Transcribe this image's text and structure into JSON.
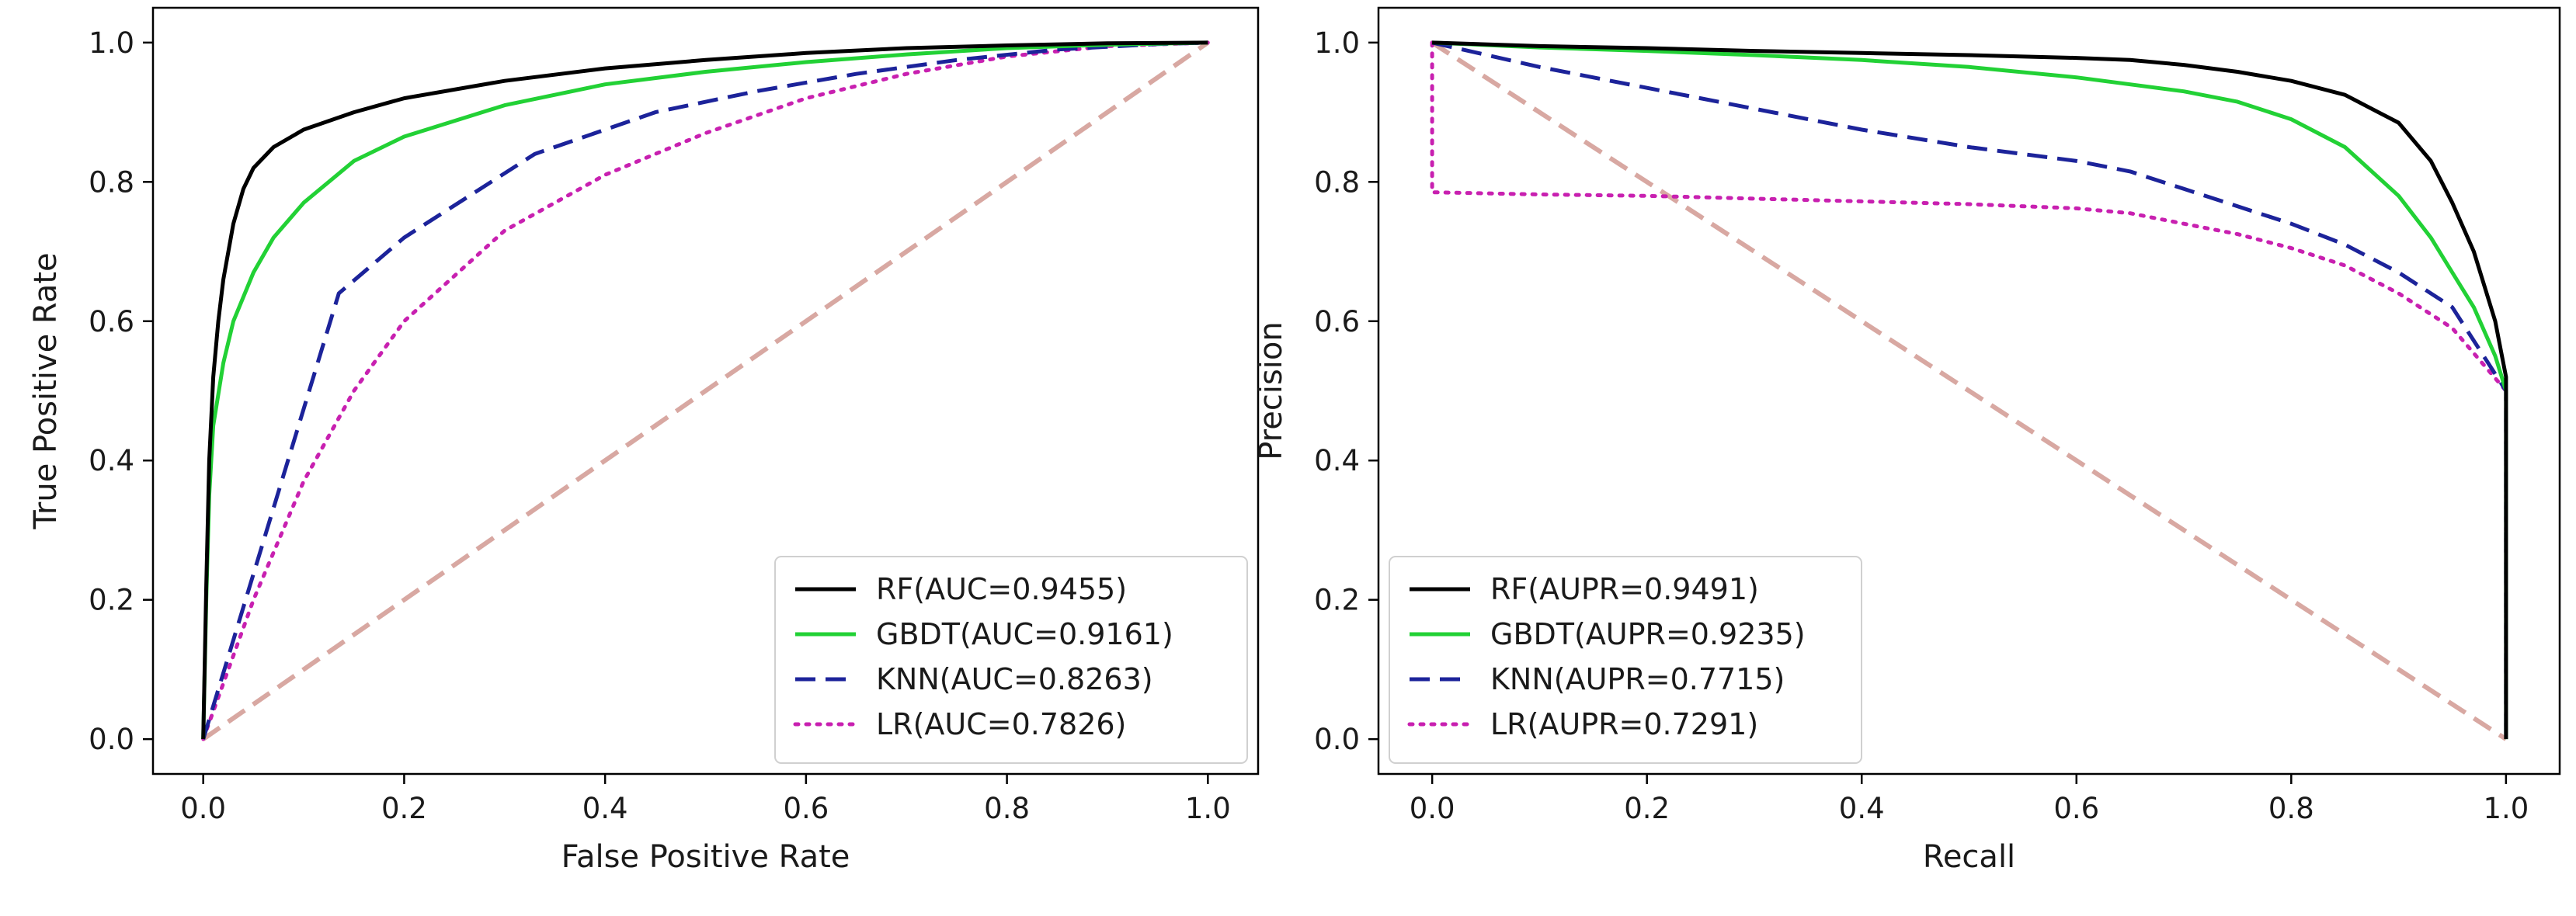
{
  "chart_data": [
    {
      "type": "line",
      "xlabel": "False Positive Rate",
      "ylabel": "True Positive Rate",
      "xlim": [
        -0.05,
        1.05
      ],
      "ylim": [
        -0.05,
        1.05
      ],
      "xticks": [
        0.0,
        0.2,
        0.4,
        0.6,
        0.8,
        1.0
      ],
      "yticks": [
        0.0,
        0.2,
        0.4,
        0.6,
        0.8,
        1.0
      ],
      "xtick_labels": [
        "0.0",
        "0.2",
        "0.4",
        "0.6",
        "0.8",
        "1.0"
      ],
      "ytick_labels": [
        "0.0",
        "0.2",
        "0.4",
        "0.6",
        "0.8",
        "1.0"
      ],
      "legend_position": "lower-right",
      "series": [
        {
          "name": "RF(AUC=0.9455)",
          "color": "#000000",
          "dash": "solid",
          "x": [
            0,
            0.003,
            0.006,
            0.01,
            0.015,
            0.02,
            0.03,
            0.04,
            0.05,
            0.07,
            0.1,
            0.15,
            0.2,
            0.3,
            0.4,
            0.5,
            0.6,
            0.7,
            0.8,
            0.9,
            1.0
          ],
          "y": [
            0,
            0.22,
            0.4,
            0.52,
            0.6,
            0.66,
            0.74,
            0.79,
            0.82,
            0.85,
            0.875,
            0.9,
            0.92,
            0.945,
            0.963,
            0.975,
            0.985,
            0.992,
            0.996,
            0.999,
            1.0
          ]
        },
        {
          "name": "GBDT(AUC=0.9161)",
          "color": "#22d135",
          "dash": "solid",
          "x": [
            0,
            0.003,
            0.006,
            0.01,
            0.02,
            0.03,
            0.05,
            0.07,
            0.1,
            0.15,
            0.2,
            0.3,
            0.4,
            0.5,
            0.6,
            0.7,
            0.8,
            0.9,
            1.0
          ],
          "y": [
            0,
            0.2,
            0.35,
            0.45,
            0.54,
            0.6,
            0.67,
            0.72,
            0.77,
            0.83,
            0.865,
            0.91,
            0.94,
            0.958,
            0.972,
            0.983,
            0.992,
            0.997,
            1.0
          ]
        },
        {
          "name": "KNN(AUC=0.8263)",
          "color": "#1c239a",
          "dash": "dashed",
          "x": [
            0,
            0.135,
            0.2,
            0.33,
            0.45,
            0.55,
            0.65,
            0.75,
            0.85,
            0.95,
            1.0
          ],
          "y": [
            0,
            0.64,
            0.72,
            0.84,
            0.9,
            0.93,
            0.955,
            0.975,
            0.99,
            0.998,
            1.0
          ]
        },
        {
          "name": "LR(AUC=0.7826)",
          "color": "#c820b0",
          "dash": "dotted",
          "x": [
            0,
            0.05,
            0.1,
            0.15,
            0.2,
            0.3,
            0.4,
            0.5,
            0.6,
            0.7,
            0.8,
            0.9,
            1.0
          ],
          "y": [
            0,
            0.2,
            0.37,
            0.5,
            0.6,
            0.73,
            0.81,
            0.87,
            0.92,
            0.955,
            0.98,
            0.995,
            1.0
          ]
        },
        {
          "name": "",
          "color": "#d8a8a2",
          "dash": "dashed",
          "legend": false,
          "x": [
            0,
            1
          ],
          "y": [
            0,
            1
          ]
        }
      ]
    },
    {
      "type": "line",
      "xlabel": "Recall",
      "ylabel": "Precision",
      "xlim": [
        -0.05,
        1.05
      ],
      "ylim": [
        -0.05,
        1.05
      ],
      "xticks": [
        0.0,
        0.2,
        0.4,
        0.6,
        0.8,
        1.0
      ],
      "yticks": [
        0.0,
        0.2,
        0.4,
        0.6,
        0.8,
        1.0
      ],
      "xtick_labels": [
        "0.0",
        "0.2",
        "0.4",
        "0.6",
        "0.8",
        "1.0"
      ],
      "ytick_labels": [
        "0.0",
        "0.2",
        "0.4",
        "0.6",
        "0.8",
        "1.0"
      ],
      "legend_position": "lower-left",
      "series": [
        {
          "name": "RF(AUPR=0.9491)",
          "color": "#000000",
          "dash": "solid",
          "x": [
            0,
            0.1,
            0.2,
            0.3,
            0.4,
            0.5,
            0.6,
            0.65,
            0.7,
            0.75,
            0.8,
            0.85,
            0.9,
            0.93,
            0.95,
            0.97,
            0.98,
            0.99,
            0.995,
            1.0,
            1.0
          ],
          "y": [
            1.0,
            0.995,
            0.992,
            0.988,
            0.985,
            0.982,
            0.978,
            0.975,
            0.968,
            0.958,
            0.945,
            0.925,
            0.885,
            0.83,
            0.77,
            0.7,
            0.65,
            0.6,
            0.56,
            0.52,
            0.0
          ]
        },
        {
          "name": "GBDT(AUPR=0.9235)",
          "color": "#22d135",
          "dash": "solid",
          "x": [
            0,
            0.1,
            0.2,
            0.3,
            0.4,
            0.5,
            0.6,
            0.7,
            0.75,
            0.8,
            0.85,
            0.9,
            0.93,
            0.95,
            0.97,
            0.99,
            1.0,
            1.0
          ],
          "y": [
            1.0,
            0.993,
            0.988,
            0.982,
            0.975,
            0.965,
            0.95,
            0.93,
            0.915,
            0.89,
            0.85,
            0.78,
            0.72,
            0.67,
            0.62,
            0.55,
            0.5,
            0.0
          ]
        },
        {
          "name": "KNN(AUPR=0.7715)",
          "color": "#1c239a",
          "dash": "dashed",
          "x": [
            0,
            0.1,
            0.2,
            0.3,
            0.4,
            0.5,
            0.6,
            0.65,
            0.7,
            0.8,
            0.85,
            0.9,
            0.95,
            1.0,
            1.0
          ],
          "y": [
            1.0,
            0.965,
            0.935,
            0.905,
            0.875,
            0.85,
            0.83,
            0.815,
            0.79,
            0.74,
            0.71,
            0.67,
            0.62,
            0.5,
            0.0
          ]
        },
        {
          "name": "LR(AUPR=0.7291)",
          "color": "#c820b0",
          "dash": "dotted",
          "x": [
            0,
            0.0,
            0.005,
            0.1,
            0.2,
            0.3,
            0.4,
            0.5,
            0.6,
            0.65,
            0.7,
            0.75,
            0.8,
            0.85,
            0.9,
            0.95,
            1.0,
            1.0
          ],
          "y": [
            1.0,
            0.785,
            0.785,
            0.782,
            0.78,
            0.776,
            0.772,
            0.768,
            0.762,
            0.755,
            0.74,
            0.725,
            0.705,
            0.68,
            0.64,
            0.59,
            0.5,
            0.0
          ]
        },
        {
          "name": "",
          "color": "#d8a8a2",
          "dash": "dashed",
          "legend": false,
          "x": [
            0,
            1
          ],
          "y": [
            1,
            0
          ]
        }
      ]
    }
  ]
}
